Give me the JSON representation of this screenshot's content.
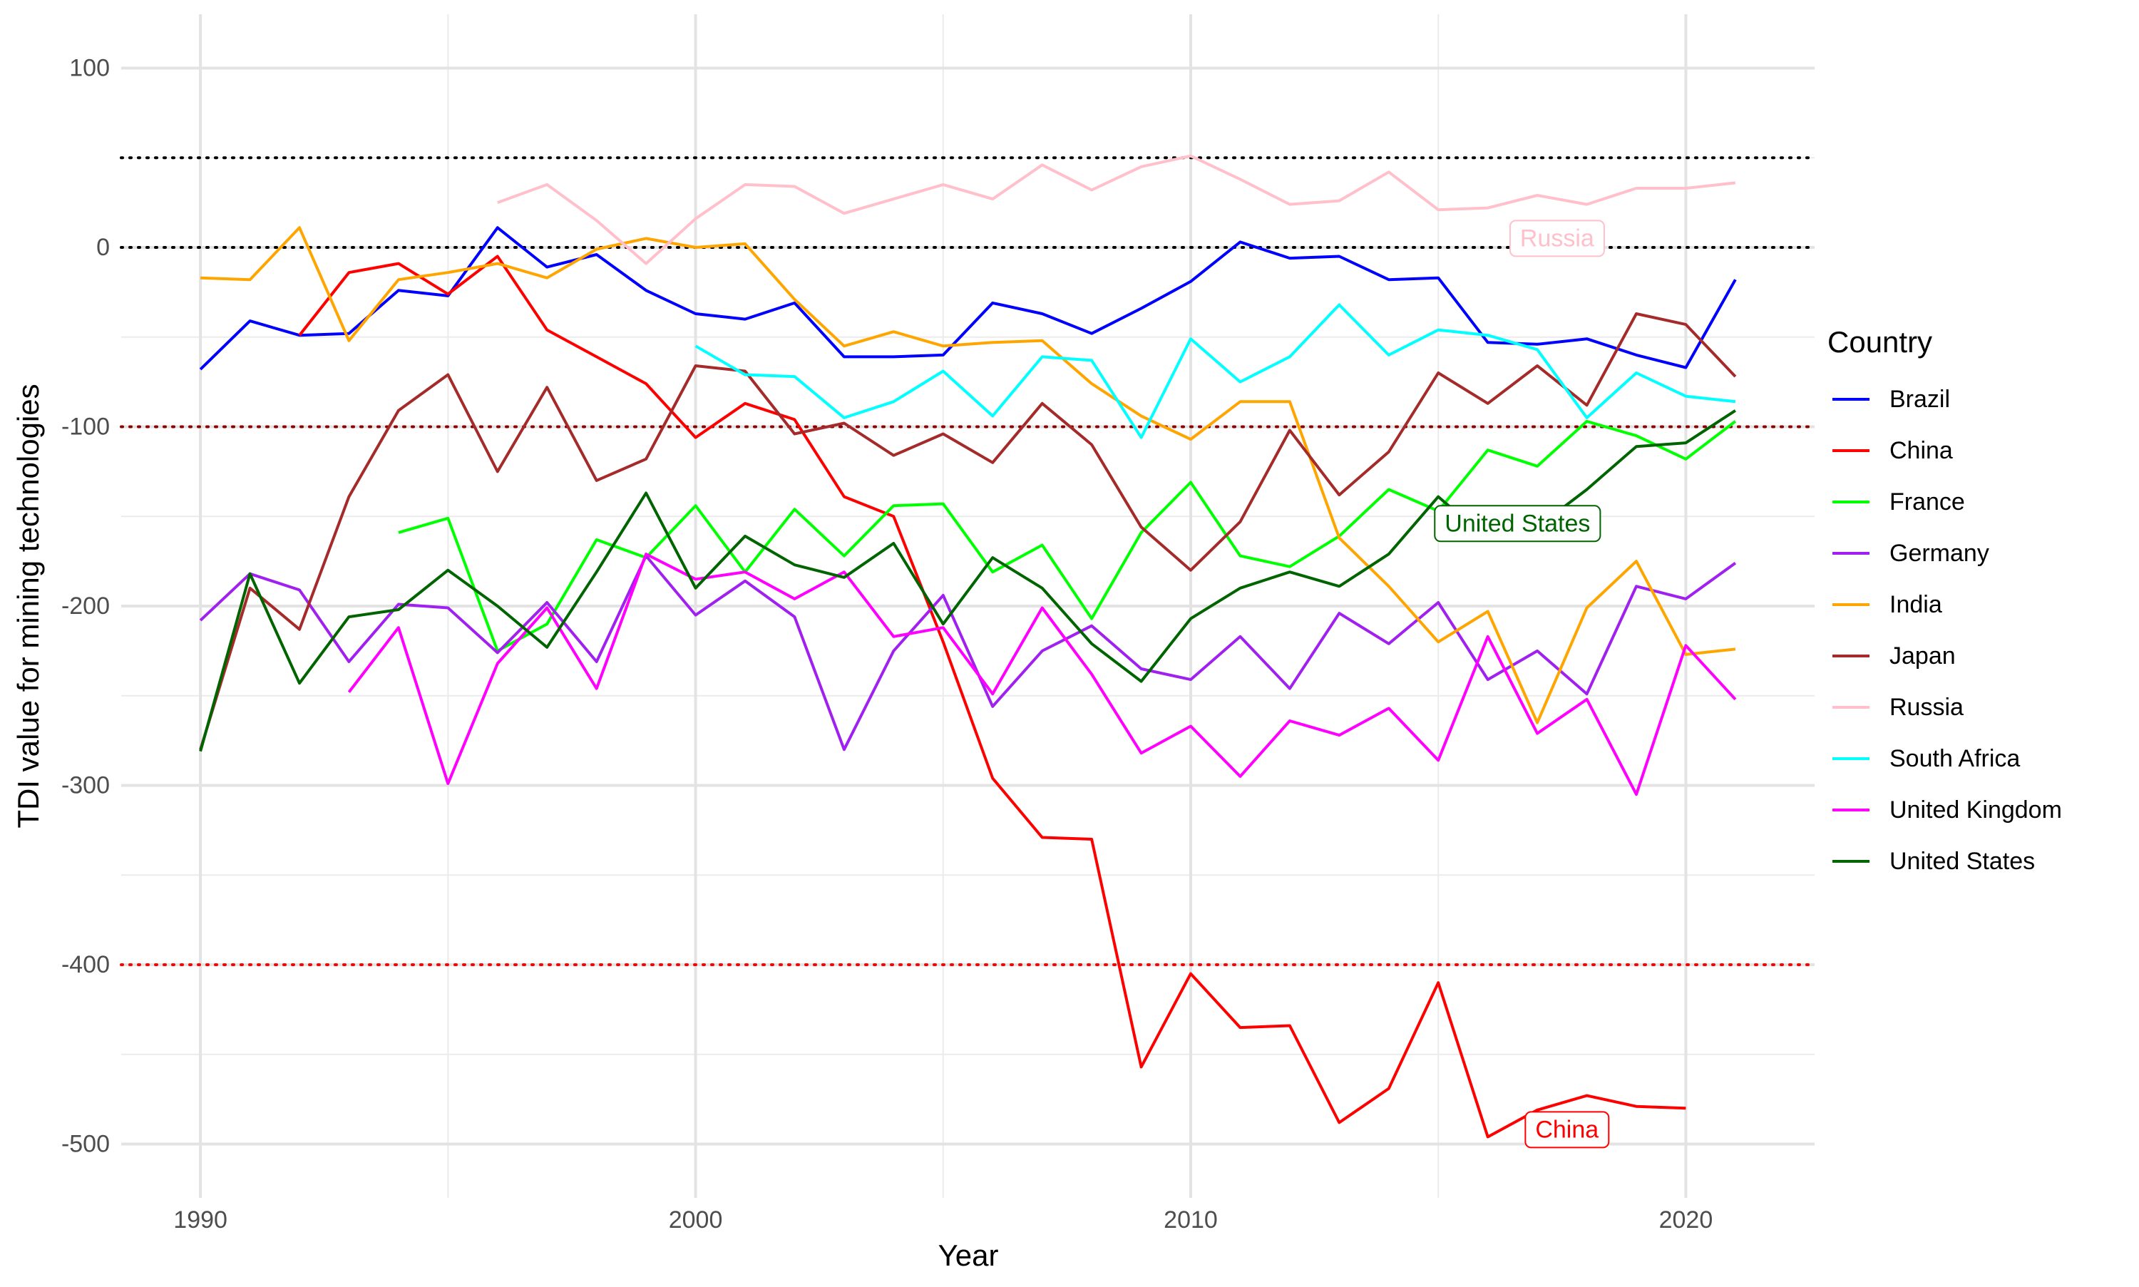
{
  "chart_data": {
    "type": "line",
    "xlabel": "Year",
    "ylabel": "TDI value for mining technologies",
    "xlim": [
      1988.4,
      2022.6
    ],
    "ylim": [
      -530,
      130
    ],
    "x_ticks": [
      1990,
      2000,
      2010,
      2020
    ],
    "x_tick_labels": [
      "1990",
      "2000",
      "2010",
      "2020"
    ],
    "y_ticks": [
      100,
      0,
      -100,
      -200,
      -300,
      -400,
      -500
    ],
    "y_tick_labels": [
      "100",
      "0",
      "-100",
      "-200",
      "-300",
      "-400",
      "-500"
    ],
    "grid": true,
    "reference_lines": [
      {
        "y": 50,
        "color": "#000000",
        "style": "dotted"
      },
      {
        "y": 0,
        "color": "#000000",
        "style": "dotted"
      },
      {
        "y": -100,
        "color": "#8b0000",
        "style": "dotted"
      },
      {
        "y": -400,
        "color": "#ff0000",
        "style": "dotted"
      }
    ],
    "legend": {
      "title": "Country",
      "placement": "right"
    },
    "series": [
      {
        "name": "Brazil",
        "color": "#0000ff",
        "x": [
          1990,
          1991,
          1992,
          1993,
          1994,
          1995,
          1996,
          1997,
          1998,
          1999,
          2000,
          2001,
          2002,
          2003,
          2004,
          2005,
          2006,
          2007,
          2008,
          2009,
          2010,
          2011,
          2012,
          2013,
          2014,
          2015,
          2016,
          2017,
          2018,
          2019,
          2020,
          2021
        ],
        "y": [
          -68,
          -41,
          -49,
          -48,
          -24,
          -27,
          11,
          -11,
          -4,
          -24,
          -37,
          -40,
          -31,
          -61,
          -61,
          -60,
          -31,
          -37,
          -48,
          -34,
          -19,
          3,
          -6,
          -5,
          -18,
          -17,
          -53,
          -54,
          -51,
          -60,
          -67,
          -18
        ]
      },
      {
        "name": "China",
        "color": "#ff0000",
        "x": [
          1992,
          1993,
          1994,
          1995,
          1996,
          1997,
          1998,
          1999,
          2000,
          2001,
          2002,
          2003,
          2004,
          2005,
          2006,
          2007,
          2008,
          2009,
          2010,
          2011,
          2012,
          2013,
          2014,
          2015,
          2016,
          2017,
          2018,
          2019,
          2020
        ],
        "y": [
          -49,
          -14,
          -9,
          -26,
          -5,
          -46,
          -61,
          -76,
          -106,
          -87,
          -96,
          -139,
          -150,
          -220,
          -296,
          -329,
          -330,
          -457,
          -405,
          -435,
          -434,
          -488,
          -469,
          -410,
          -496,
          -481,
          -473,
          -479,
          -480
        ]
      },
      {
        "name": "France",
        "color": "#00ff00",
        "x": [
          1994,
          1995,
          1996,
          1997,
          1998,
          1999,
          2000,
          2001,
          2002,
          2003,
          2004,
          2005,
          2006,
          2007,
          2008,
          2009,
          2010,
          2011,
          2012,
          2013,
          2014,
          2015,
          2016,
          2017,
          2018,
          2019,
          2020,
          2021
        ],
        "y": [
          -159,
          -151,
          -225,
          -210,
          -163,
          -173,
          -144,
          -181,
          -146,
          -172,
          -144,
          -143,
          -181,
          -166,
          -207,
          -159,
          -131,
          -172,
          -178,
          -161,
          -135,
          -147,
          -113,
          -122,
          -97,
          -105,
          -118,
          -97
        ]
      },
      {
        "name": "Germany",
        "color": "#a020f0",
        "x": [
          1990,
          1991,
          1992,
          1993,
          1994,
          1995,
          1996,
          1997,
          1998,
          1999,
          2000,
          2001,
          2002,
          2003,
          2004,
          2005,
          2006,
          2007,
          2008,
          2009,
          2010,
          2011,
          2012,
          2013,
          2014,
          2015,
          2016,
          2017,
          2018,
          2019,
          2020,
          2021
        ],
        "y": [
          -208,
          -182,
          -191,
          -231,
          -199,
          -201,
          -226,
          -198,
          -231,
          -172,
          -205,
          -186,
          -206,
          -280,
          -225,
          -194,
          -256,
          -225,
          -211,
          -235,
          -241,
          -217,
          -246,
          -204,
          -221,
          -198,
          -241,
          -225,
          -249,
          -189,
          -196,
          -176
        ]
      },
      {
        "name": "India",
        "color": "#ffa500",
        "x": [
          1990,
          1991,
          1992,
          1993,
          1994,
          1995,
          1996,
          1997,
          1998,
          1999,
          2000,
          2001,
          2002,
          2003,
          2004,
          2005,
          2006,
          2007,
          2008,
          2009,
          2010,
          2011,
          2012,
          2013,
          2014,
          2015,
          2016,
          2017,
          2018,
          2019,
          2020,
          2021
        ],
        "y": [
          -17,
          -18,
          11,
          -52,
          -18,
          -14,
          -9,
          -17,
          -1,
          5,
          0,
          2,
          -29,
          -55,
          -47,
          -55,
          -53,
          -52,
          -76,
          -94,
          -107,
          -86,
          -86,
          -162,
          -189,
          -220,
          -203,
          -265,
          -201,
          -175,
          -227,
          -224
        ]
      },
      {
        "name": "Japan",
        "color": "#a52a2a",
        "x": [
          1990,
          1991,
          1992,
          1993,
          1994,
          1995,
          1996,
          1997,
          1998,
          1999,
          2000,
          2001,
          2002,
          2003,
          2004,
          2005,
          2006,
          2007,
          2008,
          2009,
          2010,
          2011,
          2012,
          2013,
          2014,
          2015,
          2016,
          2017,
          2018,
          2019,
          2020,
          2021
        ],
        "y": [
          -280,
          -190,
          -213,
          -139,
          -91,
          -71,
          -125,
          -78,
          -130,
          -118,
          -66,
          -69,
          -104,
          -98,
          -116,
          -104,
          -120,
          -87,
          -110,
          -156,
          -180,
          -153,
          -102,
          -138,
          -114,
          -70,
          -87,
          -66,
          -88,
          -37,
          -43,
          -72
        ]
      },
      {
        "name": "Russia",
        "color": "#ffc0cb",
        "x": [
          1996,
          1997,
          1998,
          1999,
          2000,
          2001,
          2002,
          2003,
          2004,
          2005,
          2006,
          2007,
          2008,
          2009,
          2010,
          2011,
          2012,
          2013,
          2014,
          2015,
          2016,
          2017,
          2018,
          2019,
          2020,
          2021
        ],
        "y": [
          25,
          35,
          15,
          -9,
          16,
          35,
          34,
          19,
          27,
          35,
          27,
          46,
          32,
          45,
          51,
          38,
          24,
          26,
          42,
          21,
          22,
          29,
          24,
          33,
          33,
          36
        ]
      },
      {
        "name": "South Africa",
        "color": "#00ffff",
        "x": [
          2000,
          2001,
          2002,
          2003,
          2004,
          2005,
          2006,
          2007,
          2008,
          2009,
          2010,
          2011,
          2012,
          2013,
          2014,
          2015,
          2016,
          2017,
          2018,
          2019,
          2020,
          2021
        ],
        "y": [
          -55,
          -71,
          -72,
          -95,
          -86,
          -69,
          -94,
          -61,
          -63,
          -106,
          -51,
          -75,
          -61,
          -32,
          -60,
          -46,
          -49,
          -57,
          -95,
          -70,
          -83,
          -86
        ]
      },
      {
        "name": "United Kingdom",
        "color": "#ff00ff",
        "x": [
          1993,
          1994,
          1995,
          1996,
          1997,
          1998,
          1999,
          2000,
          2001,
          2002,
          2003,
          2004,
          2005,
          2006,
          2007,
          2008,
          2009,
          2010,
          2011,
          2012,
          2013,
          2014,
          2015,
          2016,
          2017,
          2018,
          2019,
          2020,
          2021
        ],
        "y": [
          -248,
          -212,
          -299,
          -232,
          -201,
          -246,
          -171,
          -185,
          -181,
          -196,
          -181,
          -217,
          -212,
          -249,
          -201,
          -238,
          -282,
          -267,
          -295,
          -264,
          -272,
          -257,
          -286,
          -217,
          -271,
          -252,
          -305,
          -222,
          -252
        ]
      },
      {
        "name": "United States",
        "color": "#006400",
        "x": [
          1990,
          1991,
          1992,
          1993,
          1994,
          1995,
          1996,
          1997,
          1998,
          1999,
          2000,
          2001,
          2002,
          2003,
          2004,
          2005,
          2006,
          2007,
          2008,
          2009,
          2010,
          2011,
          2012,
          2013,
          2014,
          2015,
          2016,
          2017,
          2018,
          2019,
          2020,
          2021
        ],
        "y": [
          -281,
          -182,
          -243,
          -206,
          -202,
          -180,
          -200,
          -223,
          -181,
          -137,
          -190,
          -161,
          -177,
          -184,
          -165,
          -210,
          -173,
          -190,
          -221,
          -242,
          -207,
          -190,
          -181,
          -189,
          -171,
          -139,
          -163,
          -156,
          -135,
          -111,
          -109,
          -91
        ]
      }
    ],
    "annotations": [
      {
        "text": "Russia",
        "x": 2017.4,
        "y": 5,
        "color": "#ffc0cb"
      },
      {
        "text": "United States",
        "x": 2016.6,
        "y": -154,
        "color": "#006400"
      },
      {
        "text": "China",
        "x": 2017.6,
        "y": -492,
        "color": "#ff0000"
      }
    ]
  }
}
